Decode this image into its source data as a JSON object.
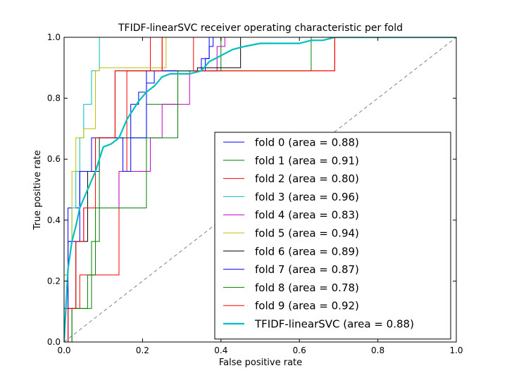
{
  "chart_data": {
    "type": "line",
    "title": "TFIDF-linearSVC receiver operating characteristic per fold",
    "xlabel": "False positive rate",
    "ylabel": "True positive rate",
    "xlim": [
      0.0,
      1.0
    ],
    "ylim": [
      0.0,
      1.0
    ],
    "xticks": [
      "0.0",
      "0.2",
      "0.4",
      "0.6",
      "0.8",
      "1.0"
    ],
    "yticks": [
      "0.0",
      "0.2",
      "0.4",
      "0.6",
      "0.8",
      "1.0"
    ],
    "grid": false,
    "legend_position": "lower-right",
    "series": [
      {
        "name": "fold 0 (area = 0.88)",
        "color": "#0000ff",
        "width": 1,
        "x": [
          0,
          0,
          0.01,
          0.01,
          0.04,
          0.04,
          0.09,
          0.09,
          0.17,
          0.17,
          0.19,
          0.19,
          0.21,
          0.21,
          0.23,
          0.23,
          0.35,
          0.35,
          0.37,
          0.37,
          0.38,
          0.38,
          1.0
        ],
        "y": [
          0,
          0.11,
          0.11,
          0.44,
          0.44,
          0.56,
          0.56,
          0.67,
          0.67,
          0.78,
          0.78,
          0.82,
          0.82,
          0.85,
          0.85,
          0.89,
          0.89,
          0.93,
          0.93,
          0.97,
          0.97,
          1.0,
          1.0
        ]
      },
      {
        "name": "fold 1 (area = 0.91)",
        "color": "#008000",
        "width": 1,
        "x": [
          0,
          0.02,
          0.02,
          0.07,
          0.07,
          0.09,
          0.09,
          0.21,
          0.21,
          0.29,
          0.29,
          0.35,
          0.35,
          0.4,
          0.4,
          0.63,
          0.63,
          1.0
        ],
        "y": [
          0,
          0,
          0.11,
          0.11,
          0.33,
          0.33,
          0.67,
          0.67,
          0.78,
          0.78,
          0.89,
          0.89,
          0.89,
          0.89,
          1.0,
          1.0,
          1.0,
          1.0
        ]
      },
      {
        "name": "fold 2 (area = 0.80)",
        "color": "#ff0000",
        "width": 1,
        "x": [
          0,
          0.01,
          0.01,
          0.04,
          0.04,
          0.14,
          0.14,
          0.16,
          0.16,
          0.2,
          0.2,
          0.22,
          0.22,
          0.25,
          0.25,
          0.69,
          0.69,
          1.0
        ],
        "y": [
          0,
          0,
          0.11,
          0.11,
          0.22,
          0.22,
          0.56,
          0.56,
          0.89,
          0.89,
          0.89,
          0.89,
          1.0,
          1.0,
          0.89,
          0.89,
          1.0,
          1.0
        ]
      },
      {
        "name": "fold 3 (area = 0.96)",
        "color": "#00bfbf",
        "width": 1,
        "x": [
          0,
          0,
          0.01,
          0.01,
          0.02,
          0.02,
          0.03,
          0.03,
          0.04,
          0.04,
          0.05,
          0.05,
          0.07,
          0.07,
          0.08,
          0.08,
          0.09,
          0.09,
          1.0
        ],
        "y": [
          0,
          0.22,
          0.22,
          0.33,
          0.33,
          0.44,
          0.44,
          0.56,
          0.56,
          0.67,
          0.67,
          0.78,
          0.78,
          0.89,
          0.89,
          0.89,
          0.89,
          1.0,
          1.0
        ]
      },
      {
        "name": "fold 4 (area = 0.83)",
        "color": "#bf00bf",
        "width": 1,
        "x": [
          0,
          0.01,
          0.01,
          0.05,
          0.05,
          0.14,
          0.14,
          0.22,
          0.22,
          0.25,
          0.25,
          0.32,
          0.32,
          0.39,
          0.39,
          0.41,
          0.41,
          1.0
        ],
        "y": [
          0,
          0,
          0.33,
          0.33,
          0.44,
          0.44,
          0.56,
          0.56,
          0.67,
          0.67,
          0.78,
          0.78,
          0.89,
          0.89,
          0.97,
          0.97,
          1.0,
          1.0
        ]
      },
      {
        "name": "fold 5 (area = 0.94)",
        "color": "#bfbf00",
        "width": 1,
        "x": [
          0,
          0,
          0.01,
          0.01,
          0.02,
          0.02,
          0.03,
          0.03,
          0.05,
          0.05,
          0.08,
          0.08,
          0.09,
          0.09,
          0.26,
          0.26,
          1.0
        ],
        "y": [
          0,
          0.22,
          0.22,
          0.33,
          0.33,
          0.56,
          0.56,
          0.67,
          0.67,
          0.7,
          0.7,
          0.89,
          0.89,
          0.9,
          0.9,
          1.0,
          1.0
        ]
      },
      {
        "name": "fold 6 (area = 0.89)",
        "color": "#000000",
        "width": 1,
        "x": [
          0,
          0.01,
          0.01,
          0.03,
          0.03,
          0.06,
          0.06,
          0.08,
          0.08,
          0.13,
          0.13,
          0.19,
          0.19,
          0.34,
          0.34,
          0.45,
          0.45,
          1.0
        ],
        "y": [
          0,
          0,
          0.11,
          0.11,
          0.33,
          0.33,
          0.56,
          0.56,
          0.67,
          0.67,
          0.89,
          0.89,
          0.89,
          0.89,
          0.9,
          0.9,
          1.0,
          1.0
        ]
      },
      {
        "name": "fold 7 (area = 0.87)",
        "color": "#0000ff",
        "width": 1,
        "x": [
          0,
          0.01,
          0.01,
          0.04,
          0.04,
          0.07,
          0.07,
          0.15,
          0.15,
          0.17,
          0.17,
          0.21,
          0.21,
          0.36,
          0.36,
          0.37,
          0.37,
          1.0
        ],
        "y": [
          0,
          0,
          0.33,
          0.33,
          0.56,
          0.56,
          0.67,
          0.67,
          0.56,
          0.56,
          0.67,
          0.67,
          0.89,
          0.89,
          0.93,
          0.93,
          1.0,
          1.0
        ]
      },
      {
        "name": "fold 8 (area = 0.78)",
        "color": "#008000",
        "width": 1,
        "x": [
          0,
          0.02,
          0.02,
          0.06,
          0.06,
          0.08,
          0.08,
          0.16,
          0.16,
          0.21,
          0.21,
          0.29,
          0.29,
          0.35,
          0.35,
          0.63,
          0.63,
          1.0
        ],
        "y": [
          0,
          0,
          0.11,
          0.11,
          0.22,
          0.22,
          0.44,
          0.44,
          0.44,
          0.44,
          0.67,
          0.67,
          0.89,
          0.89,
          0.89,
          0.89,
          1.0,
          1.0
        ]
      },
      {
        "name": "fold 9 (area = 0.92)",
        "color": "#ff0000",
        "width": 1,
        "x": [
          0,
          0.01,
          0.01,
          0.03,
          0.03,
          0.05,
          0.05,
          0.08,
          0.08,
          0.13,
          0.13,
          0.2,
          0.2,
          0.25,
          0.25,
          0.33,
          0.33,
          0.69,
          0.69,
          1.0
        ],
        "y": [
          0,
          0,
          0.11,
          0.11,
          0.33,
          0.33,
          0.44,
          0.44,
          0.67,
          0.67,
          0.89,
          0.89,
          0.89,
          0.89,
          1.0,
          1.0,
          0.89,
          0.89,
          1.0,
          1.0
        ]
      },
      {
        "name": "TFIDF-linearSVC (area = 0.88)",
        "color": "#00bfbf",
        "width": 2.2,
        "x": [
          0,
          0.01,
          0.02,
          0.03,
          0.04,
          0.06,
          0.08,
          0.09,
          0.1,
          0.12,
          0.14,
          0.15,
          0.16,
          0.17,
          0.19,
          0.21,
          0.23,
          0.25,
          0.27,
          0.32,
          0.35,
          0.37,
          0.4,
          0.43,
          0.46,
          0.5,
          0.6,
          0.63,
          0.66,
          0.69,
          1.0
        ],
        "y": [
          0,
          0.24,
          0.33,
          0.38,
          0.44,
          0.5,
          0.56,
          0.6,
          0.64,
          0.65,
          0.67,
          0.7,
          0.73,
          0.75,
          0.79,
          0.82,
          0.84,
          0.87,
          0.88,
          0.88,
          0.89,
          0.92,
          0.94,
          0.96,
          0.97,
          0.98,
          0.98,
          0.99,
          0.99,
          1.0,
          1.0
        ]
      }
    ],
    "reference_line": {
      "x": [
        0,
        1
      ],
      "y": [
        0,
        1
      ],
      "color": "#808080",
      "dash": "dashed"
    }
  }
}
